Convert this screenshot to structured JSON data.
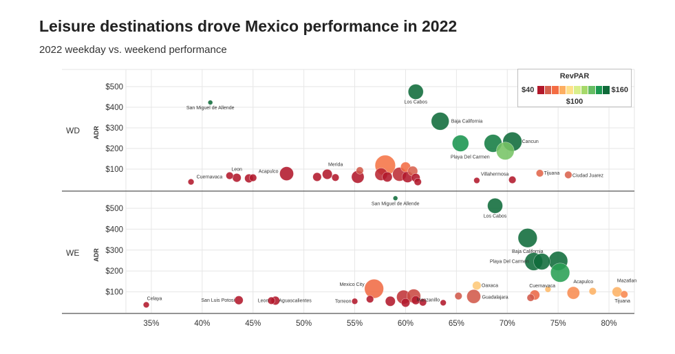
{
  "title": "Leisure destinations drove Mexico performance in 2022",
  "subtitle": "2022 weekday vs. weekend performance",
  "chart_data": {
    "type": "scatter",
    "title": "Leisure destinations drove Mexico performance in 2022",
    "subtitle": "2022 weekday vs. weekend performance",
    "xlabel": "",
    "x_ticks": [
      "35%",
      "40%",
      "45%",
      "50%",
      "55%",
      "60%",
      "65%",
      "70%",
      "75%",
      "80%"
    ],
    "xlim": [
      0.325,
      0.825
    ],
    "ylabel": "ADR",
    "y_ticks": [
      "$100",
      "$200",
      "$300",
      "$400",
      "$500"
    ],
    "ylim": [
      0,
      580
    ],
    "color_scale": {
      "title": "RevPAR",
      "min_label": "$40",
      "mid_label": "$100",
      "max_label": "$160",
      "colors": [
        "#b2182b",
        "#d6604d",
        "#f46d43",
        "#fdae61",
        "#fee08b",
        "#d9ef8b",
        "#a6d96a",
        "#66bd63",
        "#1a9850",
        "#0f6b3a"
      ]
    },
    "panels": [
      {
        "name": "WD",
        "points": [
          {
            "label": "San Miguel de Allende",
            "x": 0.408,
            "y": 423,
            "revpar": 172,
            "size": 2
          },
          {
            "label": "Los Cabos",
            "x": 0.61,
            "y": 475,
            "revpar": 290,
            "size": 10
          },
          {
            "label": "Baja California",
            "x": 0.634,
            "y": 332,
            "revpar": 210,
            "size": 12
          },
          {
            "label": "Playa Del Carmen",
            "x": 0.654,
            "y": 225,
            "revpar": 148,
            "size": 11
          },
          {
            "label": "",
            "x": 0.686,
            "y": 225,
            "revpar": 155,
            "size": 12
          },
          {
            "label": "Cancun",
            "x": 0.705,
            "y": 233,
            "revpar": 165,
            "size": 13
          },
          {
            "label": "",
            "x": 0.698,
            "y": 188,
            "revpar": 130,
            "size": 12
          },
          {
            "label": "Cuernavaca",
            "x": 0.389,
            "y": 38,
            "revpar": 15,
            "size": 3
          },
          {
            "label": "",
            "x": 0.427,
            "y": 68,
            "revpar": 29,
            "size": 4
          },
          {
            "label": "Leon",
            "x": 0.434,
            "y": 58,
            "revpar": 25,
            "size": 5
          },
          {
            "label": "",
            "x": 0.446,
            "y": 55,
            "revpar": 24,
            "size": 5
          },
          {
            "label": "",
            "x": 0.45,
            "y": 58,
            "revpar": 26,
            "size": 4
          },
          {
            "label": "Acapulco",
            "x": 0.483,
            "y": 78,
            "revpar": 38,
            "size": 9
          },
          {
            "label": "",
            "x": 0.513,
            "y": 62,
            "revpar": 32,
            "size": 5
          },
          {
            "label": "Merida",
            "x": 0.523,
            "y": 75,
            "revpar": 40,
            "size": 6
          },
          {
            "label": "",
            "x": 0.531,
            "y": 59,
            "revpar": 31,
            "size": 4
          },
          {
            "label": "",
            "x": 0.553,
            "y": 62,
            "revpar": 34,
            "size": 8
          },
          {
            "label": "",
            "x": 0.555,
            "y": 93,
            "revpar": 52,
            "size": 4
          },
          {
            "label": "",
            "x": 0.58,
            "y": 118,
            "revpar": 68,
            "size": 14
          },
          {
            "label": "",
            "x": 0.576,
            "y": 75,
            "revpar": 43,
            "size": 8
          },
          {
            "label": "",
            "x": 0.582,
            "y": 62,
            "revpar": 36,
            "size": 6
          },
          {
            "label": "",
            "x": 0.594,
            "y": 75,
            "revpar": 44,
            "size": 9
          },
          {
            "label": "",
            "x": 0.6,
            "y": 110,
            "revpar": 66,
            "size": 6
          },
          {
            "label": "",
            "x": 0.602,
            "y": 62,
            "revpar": 37,
            "size": 7
          },
          {
            "label": "",
            "x": 0.607,
            "y": 90,
            "revpar": 54,
            "size": 6
          },
          {
            "label": "",
            "x": 0.61,
            "y": 58,
            "revpar": 35,
            "size": 5
          },
          {
            "label": "",
            "x": 0.612,
            "y": 38,
            "revpar": 23,
            "size": 4
          },
          {
            "label": "Villahermosa",
            "x": 0.67,
            "y": 45,
            "revpar": 30,
            "size": 3
          },
          {
            "label": "",
            "x": 0.705,
            "y": 48,
            "revpar": 34,
            "size": 4
          },
          {
            "label": "Tijuana",
            "x": 0.732,
            "y": 80,
            "revpar": 58,
            "size": 4
          },
          {
            "label": "Ciudad Juarez",
            "x": 0.76,
            "y": 72,
            "revpar": 55,
            "size": 4
          }
        ]
      },
      {
        "name": "WE",
        "points": [
          {
            "label": "San Miguel de Allende",
            "x": 0.59,
            "y": 548,
            "revpar": 323,
            "size": 2
          },
          {
            "label": "Los Cabos",
            "x": 0.688,
            "y": 512,
            "revpar": 352,
            "size": 10
          },
          {
            "label": "Baja California",
            "x": 0.72,
            "y": 358,
            "revpar": 258,
            "size": 13
          },
          {
            "label": "Playa Del Carmen",
            "x": 0.726,
            "y": 245,
            "revpar": 178,
            "size": 12
          },
          {
            "label": "",
            "x": 0.734,
            "y": 245,
            "revpar": 180,
            "size": 11
          },
          {
            "label": "",
            "x": 0.75,
            "y": 248,
            "revpar": 186,
            "size": 13
          },
          {
            "label": "",
            "x": 0.752,
            "y": 192,
            "revpar": 144,
            "size": 13
          },
          {
            "label": "Celaya",
            "x": 0.345,
            "y": 38,
            "revpar": 13,
            "size": 3
          },
          {
            "label": "San Luis Potosi",
            "x": 0.436,
            "y": 60,
            "revpar": 26,
            "size": 5
          },
          {
            "label": "Leon",
            "x": 0.468,
            "y": 58,
            "revpar": 27,
            "size": 4
          },
          {
            "label": "Aguascalientes",
            "x": 0.472,
            "y": 58,
            "revpar": 27,
            "size": 5
          },
          {
            "label": "Torreon",
            "x": 0.55,
            "y": 55,
            "revpar": 30,
            "size": 3
          },
          {
            "label": "Mexico City",
            "x": 0.569,
            "y": 115,
            "revpar": 65,
            "size": 13
          },
          {
            "label": "",
            "x": 0.565,
            "y": 65,
            "revpar": 37,
            "size": 4
          },
          {
            "label": "",
            "x": 0.585,
            "y": 55,
            "revpar": 32,
            "size": 6
          },
          {
            "label": "",
            "x": 0.598,
            "y": 75,
            "revpar": 45,
            "size": 9
          },
          {
            "label": "",
            "x": 0.6,
            "y": 48,
            "revpar": 29,
            "size": 5
          },
          {
            "label": "",
            "x": 0.608,
            "y": 80,
            "revpar": 49,
            "size": 9
          },
          {
            "label": "",
            "x": 0.61,
            "y": 60,
            "revpar": 37,
            "size": 5
          },
          {
            "label": "",
            "x": 0.617,
            "y": 50,
            "revpar": 31,
            "size": 4
          },
          {
            "label": "Manzanillo",
            "x": 0.637,
            "y": 48,
            "revpar": 31,
            "size": 3
          },
          {
            "label": "",
            "x": 0.652,
            "y": 80,
            "revpar": 52,
            "size": 4
          },
          {
            "label": "Oaxaca",
            "x": 0.67,
            "y": 130,
            "revpar": 87,
            "size": 5
          },
          {
            "label": "Guadalajara",
            "x": 0.667,
            "y": 78,
            "revpar": 52,
            "size": 9
          },
          {
            "label": "Cuernavaca",
            "x": 0.723,
            "y": 72,
            "revpar": 52,
            "size": 4
          },
          {
            "label": "",
            "x": 0.727,
            "y": 85,
            "revpar": 62,
            "size": 6
          },
          {
            "label": "",
            "x": 0.74,
            "y": 112,
            "revpar": 83,
            "size": 3
          },
          {
            "label": "Acapulco",
            "x": 0.765,
            "y": 95,
            "revpar": 73,
            "size": 8
          },
          {
            "label": "",
            "x": 0.784,
            "y": 103,
            "revpar": 81,
            "size": 4
          },
          {
            "label": "Mazatlan",
            "x": 0.808,
            "y": 100,
            "revpar": 81,
            "size": 6
          },
          {
            "label": "Tijuana",
            "x": 0.815,
            "y": 88,
            "revpar": 72,
            "size": 4
          }
        ]
      }
    ]
  }
}
